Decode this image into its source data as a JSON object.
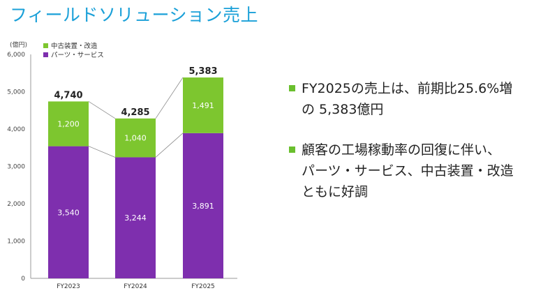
{
  "page": {
    "title": "フィールドソリューション売上"
  },
  "colors": {
    "title": "#1aa0d8",
    "used_equipment": "#7dc62f",
    "parts_service": "#7e2fae",
    "bullet": "#6abf2e"
  },
  "chart_data": {
    "type": "bar",
    "stacked": true,
    "unit_label": "(億円)",
    "categories": [
      "FY2023",
      "FY2024",
      "FY2025"
    ],
    "series": [
      {
        "name": "パーツ・サービス",
        "color": "#7e2fae",
        "values": [
          3540,
          3244,
          3891
        ]
      },
      {
        "name": "中古装置・改造",
        "color": "#7dc62f",
        "values": [
          1200,
          1040,
          1491
        ]
      }
    ],
    "totals": [
      4740,
      4285,
      5383
    ],
    "total_labels": [
      "4,740",
      "4,285",
      "5,383"
    ],
    "segment_labels": [
      [
        "3,540",
        "3,244",
        "3,891"
      ],
      [
        "1,200",
        "1,040",
        "1,491"
      ]
    ],
    "ylim": [
      0,
      6000
    ],
    "yticks": [
      0,
      1000,
      2000,
      3000,
      4000,
      5000,
      6000
    ],
    "ytick_labels": [
      "0",
      "1,000",
      "2,000",
      "3,000",
      "4,000",
      "5,000",
      "6,000"
    ],
    "legend_position": "top-left",
    "grid": false,
    "connector_lines": true
  },
  "bullets": [
    {
      "text": "FY2025の売上は、前期比25.6%増\nの 5,383億円"
    },
    {
      "text": "顧客の工場稼動率の回復に伴い、\nパーツ・サービス、中古装置・改造\nともに好調"
    }
  ]
}
